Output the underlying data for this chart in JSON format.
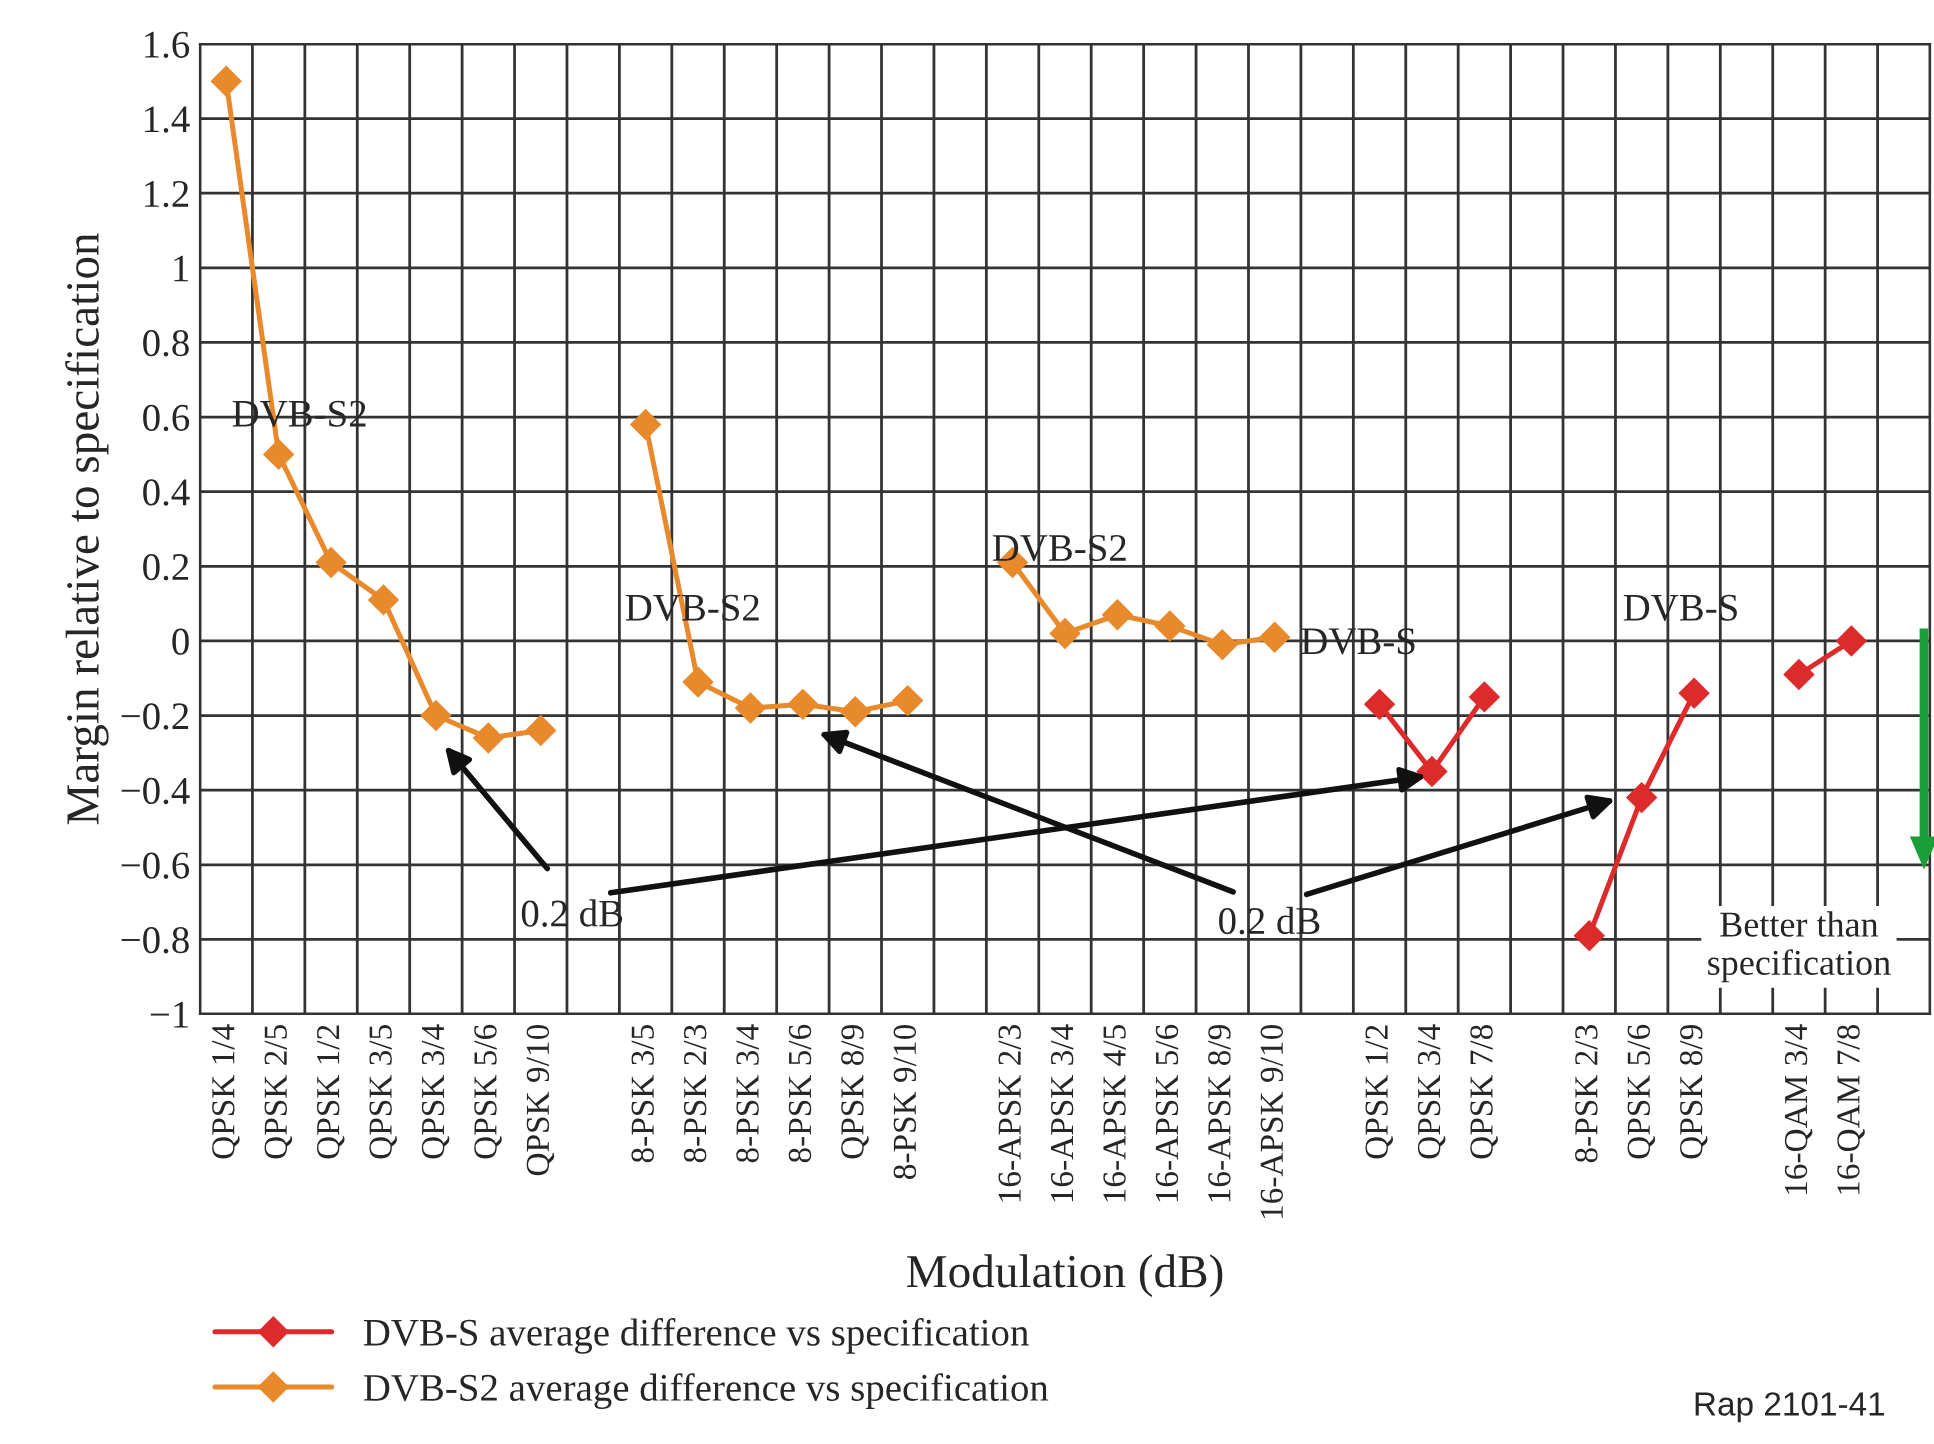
{
  "chart_data": {
    "type": "line",
    "xlabel": "Modulation (dB)",
    "ylabel": "Margin relative to specification",
    "categories": [
      "QPSK 1/4",
      "QPSK 2/5",
      "QPSK 1/2",
      "QPSK 3/5",
      "QPSK 3/4",
      "QPSK 5/6",
      "QPSK 9/10",
      null,
      "8-PSK 3/5",
      "8-PSK 2/3",
      "8-PSK 3/4",
      "8-PSK 5/6",
      "QPSK 8/9",
      "8-PSK 9/10",
      null,
      "16-APSK 2/3",
      "16-APSK 3/4",
      "16-APSK 4/5",
      "16-APSK 5/6",
      "16-APSK 8/9",
      "16-APSK 9/10",
      null,
      "QPSK 1/2",
      "QPSK 3/4",
      "QPSK 7/8",
      null,
      "8-PSK 2/3",
      "QPSK 5/6",
      "QPSK 8/9",
      null,
      "16-QAM 3/4",
      "16-QAM 7/8",
      null
    ],
    "series": [
      {
        "name": "DVB-S average difference vs specification",
        "color": "#dd2a2a",
        "values": [
          null,
          null,
          null,
          null,
          null,
          null,
          null,
          null,
          null,
          null,
          null,
          null,
          null,
          null,
          null,
          null,
          null,
          null,
          null,
          null,
          null,
          null,
          -0.17,
          -0.35,
          -0.15,
          null,
          -0.79,
          -0.42,
          -0.14,
          null,
          -0.09,
          0.0,
          null
        ]
      },
      {
        "name": "DVB-S2 average difference vs specification",
        "color": "#e8892b",
        "values": [
          1.5,
          0.5,
          0.21,
          0.11,
          -0.2,
          -0.26,
          -0.24,
          null,
          0.58,
          -0.11,
          -0.18,
          -0.17,
          -0.19,
          -0.16,
          null,
          0.21,
          0.02,
          0.07,
          0.04,
          -0.01,
          0.01,
          null,
          null,
          null,
          null,
          null,
          null,
          null,
          null,
          null,
          null,
          null,
          null
        ]
      }
    ],
    "ylim": [
      -1,
      1.6
    ],
    "yticks": [
      {
        "value": -1,
        "label": "−1"
      },
      {
        "value": -0.8,
        "label": "−0.8"
      },
      {
        "value": -0.6,
        "label": "−0.6"
      },
      {
        "value": -0.4,
        "label": "−0.4"
      },
      {
        "value": -0.2,
        "label": "−0.2"
      },
      0,
      0.2,
      0.4,
      0.6,
      0.8,
      1,
      1.2,
      1.4,
      1.6
    ],
    "marker": "diamond",
    "grid": true,
    "legend": "bottom left",
    "annotations": [
      "DVB-S2",
      "DVB-S2",
      "DVB-S2",
      "DVB-S",
      "DVB-S",
      "0.2 dB",
      "0.2 dB",
      "Better than specification",
      "Rap 2101-41"
    ]
  }
}
